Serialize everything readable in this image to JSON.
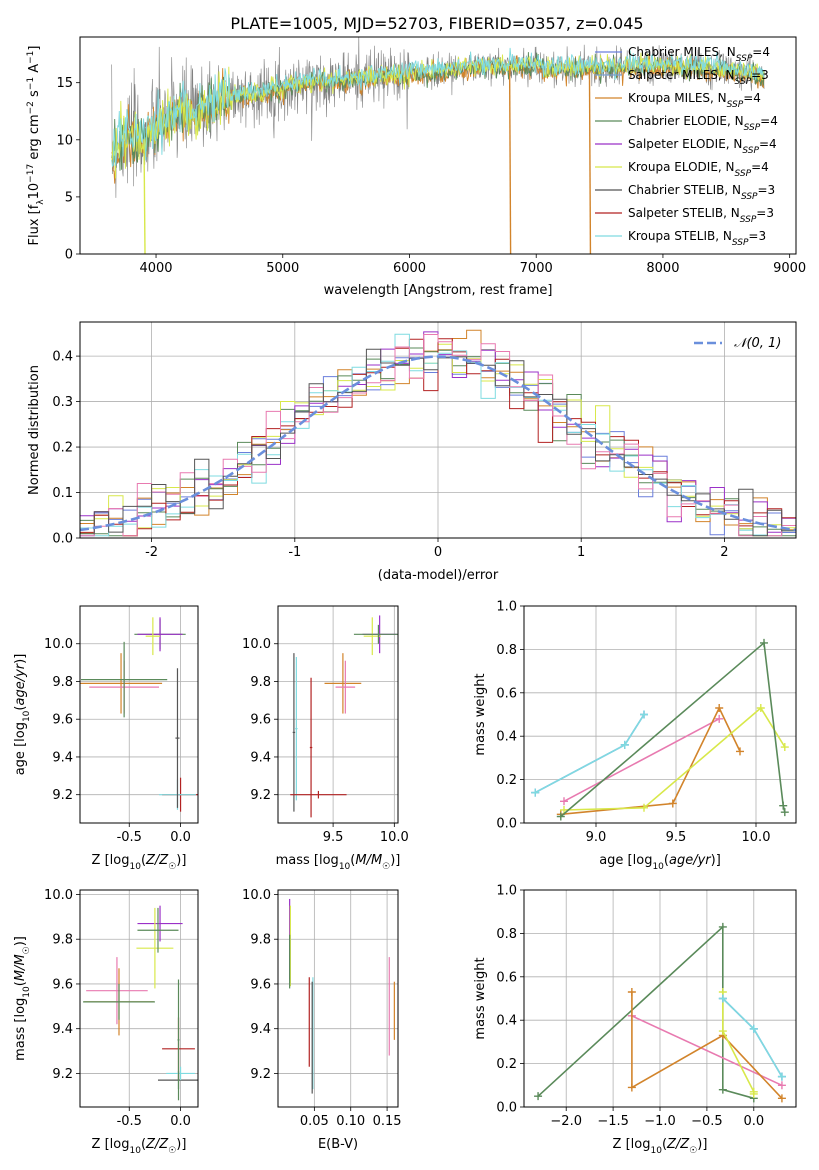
{
  "figure_title": "PLATE=1005, MJD=52703, FIBERID=0357, z=0.045",
  "colors": {
    "chabrier_miles": "#6b7fdc",
    "salpeter_miles": "#7a9fd0",
    "kroupa_miles": "#d2842b",
    "chabrier_elodie": "#5a8a5a",
    "salpeter_elodie": "#9b30c8",
    "kroupa_elodie": "#d8e84a",
    "chabrier_stelib": "#555555",
    "salpeter_stelib": "#b22222",
    "kroupa_stelib": "#7fdbe0",
    "pink": "#e87ab0",
    "normal_curve": "#6a8fdc",
    "data": "#808080"
  },
  "chart_data": [
    {
      "type": "line",
      "panel": "spectrum",
      "title": "",
      "xlabel": "wavelength [Angstrom, rest frame]",
      "ylabel_parts": [
        "Flux [f",
        "λ",
        "10",
        "−17",
        " erg cm",
        "−2",
        " s",
        "−1",
        " A",
        "−1",
        "]"
      ],
      "xlim": [
        3400,
        9050
      ],
      "ylim": [
        0,
        19
      ],
      "xticks": [
        4000,
        5000,
        6000,
        7000,
        8000,
        9000
      ],
      "yticks": [
        0,
        5,
        10,
        15
      ],
      "grid": false,
      "legend_position": "right",
      "legend": [
        {
          "label": "Chabrier MILES, N",
          "sub": "SSP",
          "suffix": "=4",
          "color_key": "chabrier_miles"
        },
        {
          "label": "Salpeter MILES, N",
          "sub": "SSP",
          "suffix": "=3",
          "color_key": "salpeter_miles"
        },
        {
          "label": "Kroupa MILES, N",
          "sub": "SSP",
          "suffix": "=4",
          "color_key": "kroupa_miles"
        },
        {
          "label": "Chabrier ELODIE, N",
          "sub": "SSP",
          "suffix": "=4",
          "color_key": "chabrier_elodie"
        },
        {
          "label": "Salpeter ELODIE, N",
          "sub": "SSP",
          "suffix": "=4",
          "color_key": "salpeter_elodie"
        },
        {
          "label": "Kroupa ELODIE, N",
          "sub": "SSP",
          "suffix": "=4",
          "color_key": "kroupa_elodie"
        },
        {
          "label": "Chabrier STELIB, N",
          "sub": "SSP",
          "suffix": "=3",
          "color_key": "chabrier_stelib"
        },
        {
          "label": "Salpeter STELIB, N",
          "sub": "SSP",
          "suffix": "=3",
          "color_key": "salpeter_stelib"
        },
        {
          "label": "Kroupa STELIB, N",
          "sub": "SSP",
          "suffix": "=3",
          "color_key": "kroupa_stelib"
        }
      ],
      "continuum": {
        "x": [
          3650,
          3700,
          3800,
          3900,
          4000,
          4100,
          4200,
          4300,
          4400,
          4600,
          4800,
          5000,
          5200,
          5500,
          6000,
          6500,
          7000,
          7200,
          7420,
          7500,
          8000,
          8500,
          8800
        ],
        "y": [
          8.5,
          9.5,
          10.3,
          10.0,
          11.0,
          12.0,
          12.5,
          12.2,
          13.0,
          13.8,
          14.0,
          14.5,
          15.0,
          15.3,
          15.8,
          16.4,
          16.5,
          16.2,
          16.3,
          16.3,
          16.5,
          16.2,
          15.5
        ]
      },
      "drops": [
        {
          "x": 3905,
          "color_key": "kroupa_elodie"
        },
        {
          "x": 6790,
          "color_key": "kroupa_miles"
        },
        {
          "x": 7420,
          "color_key": "kroupa_miles"
        }
      ]
    },
    {
      "type": "bar",
      "panel": "residual-histogram",
      "xlabel": "(data-model)/error",
      "ylabel": "Normed distribution",
      "xlim": [
        -2.5,
        2.5
      ],
      "ylim": [
        0,
        0.475
      ],
      "xticks": [
        -2,
        -1,
        0,
        1,
        2
      ],
      "yticks": [
        0.0,
        0.1,
        0.2,
        0.3,
        0.4
      ],
      "grid": true,
      "legend": [
        {
          "label": "𝒩(0, 1)",
          "color_key": "normal_curve"
        }
      ],
      "bin_width": 0.1,
      "series_colors": [
        "chabrier_miles",
        "kroupa_miles",
        "chabrier_elodie",
        "salpeter_elodie",
        "kroupa_elodie",
        "salpeter_stelib",
        "kroupa_stelib",
        "pink",
        "chabrier_stelib"
      ]
    },
    {
      "type": "scatter",
      "panel": "age-vs-Z",
      "xlabel": "Z [log10(Z/Z☉)]",
      "ylabel": "age  [log10(age/yr)]",
      "xlim": [
        -0.98,
        0.17
      ],
      "ylim": [
        9.05,
        10.2
      ],
      "xticks": [
        -0.5,
        0.0
      ],
      "yticks": [
        9.2,
        9.4,
        9.6,
        9.8,
        10.0
      ],
      "grid": true,
      "points": [
        {
          "x": -0.58,
          "y": 9.79,
          "xerr": 0.4,
          "yerr": 0.16,
          "color_key": "kroupa_miles"
        },
        {
          "x": -0.55,
          "y": 9.77,
          "xerr": 0.34,
          "yerr": 0.14,
          "color_key": "pink"
        },
        {
          "x": -0.55,
          "y": 9.81,
          "xerr": 0.42,
          "yerr": 0.2,
          "color_key": "chabrier_elodie"
        },
        {
          "x": -0.2,
          "y": 10.05,
          "xerr": 0.25,
          "yerr": 0.08,
          "color_key": "chabrier_elodie"
        },
        {
          "x": -0.2,
          "y": 10.05,
          "xerr": 0.22,
          "yerr": 0.09,
          "color_key": "salpeter_elodie"
        },
        {
          "x": -0.27,
          "y": 10.04,
          "xerr": 0.07,
          "yerr": 0.1,
          "color_key": "kroupa_elodie"
        },
        {
          "x": 0.0,
          "y": 9.2,
          "xerr": 0.18,
          "yerr": 0.09,
          "color_key": "salpeter_stelib"
        },
        {
          "x": -0.03,
          "y": 9.2,
          "xerr": 0.18,
          "yerr": 0.08,
          "color_key": "kroupa_stelib"
        },
        {
          "x": -0.03,
          "y": 9.5,
          "xerr": 0.02,
          "yerr": 0.37,
          "color_key": "chabrier_stelib"
        }
      ]
    },
    {
      "type": "scatter",
      "panel": "age-vs-mass",
      "xlabel": "mass [log10(M/M☉)]",
      "ylabel": "",
      "xlim": [
        9.05,
        10.03
      ],
      "ylim": [
        9.05,
        10.2
      ],
      "xticks": [
        9.5,
        10.0
      ],
      "yticks": [
        9.2,
        9.4,
        9.6,
        9.8,
        10.0
      ],
      "grid": true,
      "points": [
        {
          "x": 9.58,
          "y": 9.79,
          "xerr": 0.15,
          "yerr": 0.16,
          "color_key": "kroupa_miles"
        },
        {
          "x": 9.6,
          "y": 9.77,
          "xerr": 0.08,
          "yerr": 0.14,
          "color_key": "pink"
        },
        {
          "x": 9.88,
          "y": 10.05,
          "xerr": 0.14,
          "yerr": 0.1,
          "color_key": "salpeter_elodie"
        },
        {
          "x": 9.82,
          "y": 10.04,
          "xerr": 0.07,
          "yerr": 0.1,
          "color_key": "kroupa_elodie"
        },
        {
          "x": 9.87,
          "y": 10.05,
          "xerr": 0.2,
          "yerr": 0.05,
          "color_key": "chabrier_elodie"
        },
        {
          "x": 9.18,
          "y": 9.53,
          "xerr": 0.01,
          "yerr": 0.42,
          "color_key": "chabrier_stelib"
        },
        {
          "x": 9.2,
          "y": 9.55,
          "xerr": 0.01,
          "yerr": 0.38,
          "color_key": "kroupa_stelib"
        },
        {
          "x": 9.38,
          "y": 9.2,
          "xerr": 0.23,
          "yerr": 0.02,
          "color_key": "salpeter_stelib"
        },
        {
          "x": 9.32,
          "y": 9.45,
          "xerr": 0.01,
          "yerr": 0.37,
          "color_key": "salpeter_stelib"
        }
      ]
    },
    {
      "type": "line",
      "panel": "mass-weight-vs-age",
      "xlabel": "age  [log10(age/yr)]",
      "ylabel": "mass weight",
      "xlim": [
        8.55,
        10.25
      ],
      "ylim": [
        0,
        1.0
      ],
      "xticks": [
        9.0,
        9.5,
        10.0
      ],
      "yticks": [
        0.0,
        0.2,
        0.4,
        0.6,
        0.8,
        1.0
      ],
      "grid": true,
      "series": [
        {
          "color_key": "chabrier_miles",
          "x": [
            8.62,
            9.18,
            9.3
          ],
          "y": [
            0.14,
            0.36,
            0.5
          ]
        },
        {
          "color_key": "kroupa_stelib",
          "x": [
            8.62,
            9.18,
            9.3
          ],
          "y": [
            0.14,
            0.36,
            0.5
          ]
        },
        {
          "color_key": "pink",
          "x": [
            8.8,
            9.77
          ],
          "y": [
            0.1,
            0.48
          ]
        },
        {
          "color_key": "kroupa_miles",
          "x": [
            8.78,
            9.48,
            9.77,
            9.9
          ],
          "y": [
            0.04,
            0.09,
            0.53,
            0.33
          ]
        },
        {
          "color_key": "kroupa_elodie",
          "x": [
            8.8,
            9.3,
            10.03,
            10.18
          ],
          "y": [
            0.06,
            0.07,
            0.53,
            0.35
          ]
        },
        {
          "color_key": "chabrier_elodie",
          "x": [
            8.78,
            10.05,
            10.17,
            10.18
          ],
          "y": [
            0.03,
            0.83,
            0.08,
            0.05
          ]
        }
      ]
    },
    {
      "type": "scatter",
      "panel": "mass-vs-Z",
      "xlabel": "Z [log10(Z/Z☉)]",
      "ylabel": "mass [log10(M/M☉)]",
      "xlim": [
        -0.98,
        0.17
      ],
      "ylim": [
        9.05,
        10.02
      ],
      "xticks": [
        -0.5,
        0.0
      ],
      "yticks": [
        9.2,
        9.4,
        9.6,
        9.8,
        10.0
      ],
      "grid": true,
      "points": [
        {
          "x": -0.6,
          "y": 9.52,
          "xerr": 0.34,
          "yerr": 0.15,
          "color_key": "kroupa_miles"
        },
        {
          "x": -0.62,
          "y": 9.57,
          "xerr": 0.3,
          "yerr": 0.15,
          "color_key": "pink"
        },
        {
          "x": -0.6,
          "y": 9.52,
          "xerr": 0.35,
          "yerr": 0.08,
          "color_key": "chabrier_elodie"
        },
        {
          "x": -0.2,
          "y": 9.87,
          "xerr": 0.22,
          "yerr": 0.08,
          "color_key": "salpeter_elodie"
        },
        {
          "x": -0.25,
          "y": 9.76,
          "xerr": 0.18,
          "yerr": 0.18,
          "color_key": "kroupa_elodie"
        },
        {
          "x": -0.22,
          "y": 9.84,
          "xerr": 0.2,
          "yerr": 0.1,
          "color_key": "chabrier_elodie"
        },
        {
          "x": -0.02,
          "y": 9.31,
          "xerr": 0.16,
          "yerr": 0.14,
          "color_key": "salpeter_stelib"
        },
        {
          "x": -0.02,
          "y": 9.17,
          "xerr": 0.2,
          "yerr": 0.04,
          "color_key": "chabrier_stelib"
        },
        {
          "x": 0.0,
          "y": 9.2,
          "xerr": 0.14,
          "yerr": 0.03,
          "color_key": "kroupa_stelib"
        },
        {
          "x": -0.02,
          "y": 9.35,
          "xerr": 0.01,
          "yerr": 0.27,
          "color_key": "chabrier_elodie"
        }
      ]
    },
    {
      "type": "scatter",
      "panel": "mass-vs-ebv",
      "xlabel": "E(B-V)",
      "ylabel": "",
      "xlim": [
        0.0,
        0.165
      ],
      "ylim": [
        9.05,
        10.02
      ],
      "xticks": [
        0.05,
        0.1,
        0.15
      ],
      "yticks": [
        9.2,
        9.4,
        9.6,
        9.8,
        10.0
      ],
      "grid": true,
      "points": [
        {
          "x": 0.016,
          "y": 9.8,
          "xerr": 0.0,
          "yerr": 0.18,
          "color_key": "salpeter_elodie"
        },
        {
          "x": 0.017,
          "y": 9.77,
          "xerr": 0.0,
          "yerr": 0.18,
          "color_key": "kroupa_elodie"
        },
        {
          "x": 0.016,
          "y": 9.7,
          "xerr": 0.0,
          "yerr": 0.12,
          "color_key": "chabrier_elodie"
        },
        {
          "x": 0.043,
          "y": 9.43,
          "xerr": 0.0,
          "yerr": 0.2,
          "color_key": "salpeter_stelib"
        },
        {
          "x": 0.048,
          "y": 9.38,
          "xerr": 0.0,
          "yerr": 0.25,
          "color_key": "kroupa_stelib"
        },
        {
          "x": 0.047,
          "y": 9.36,
          "xerr": 0.0,
          "yerr": 0.25,
          "color_key": "chabrier_stelib"
        },
        {
          "x": 0.153,
          "y": 9.5,
          "xerr": 0.0,
          "yerr": 0.22,
          "color_key": "pink"
        },
        {
          "x": 0.16,
          "y": 9.48,
          "xerr": 0.0,
          "yerr": 0.13,
          "color_key": "kroupa_miles"
        }
      ]
    },
    {
      "type": "line",
      "panel": "mass-weight-vs-Z",
      "xlabel": "Z [log10(Z/Z☉)]",
      "ylabel": "mass weight",
      "xlim": [
        -2.45,
        0.45
      ],
      "ylim": [
        0,
        1.0
      ],
      "xticks": [
        -2.0,
        -1.5,
        -1.0,
        -0.5,
        0.0
      ],
      "yticks": [
        0.0,
        0.2,
        0.4,
        0.6,
        0.8,
        1.0
      ],
      "grid": true,
      "series": [
        {
          "color_key": "chabrier_elodie",
          "x": [
            -2.3,
            -0.33,
            -0.33,
            0.0
          ],
          "y": [
            0.05,
            0.83,
            0.08,
            0.04
          ]
        },
        {
          "color_key": "pink",
          "x": [
            -1.3,
            0.3
          ],
          "y": [
            0.42,
            0.1
          ]
        },
        {
          "color_key": "kroupa_miles",
          "x": [
            -1.3,
            -1.3,
            -0.33,
            0.3
          ],
          "y": [
            0.53,
            0.09,
            0.33,
            0.04
          ]
        },
        {
          "color_key": "kroupa_elodie",
          "x": [
            -0.33,
            -0.33,
            0.0,
            0.0
          ],
          "y": [
            0.53,
            0.35,
            0.07,
            0.06
          ]
        },
        {
          "color_key": "chabrier_miles",
          "x": [
            -0.33,
            0.0,
            0.3
          ],
          "y": [
            0.5,
            0.36,
            0.14
          ]
        },
        {
          "color_key": "kroupa_stelib",
          "x": [
            -0.33,
            0.0,
            0.3
          ],
          "y": [
            0.5,
            0.36,
            0.14
          ]
        }
      ]
    }
  ]
}
